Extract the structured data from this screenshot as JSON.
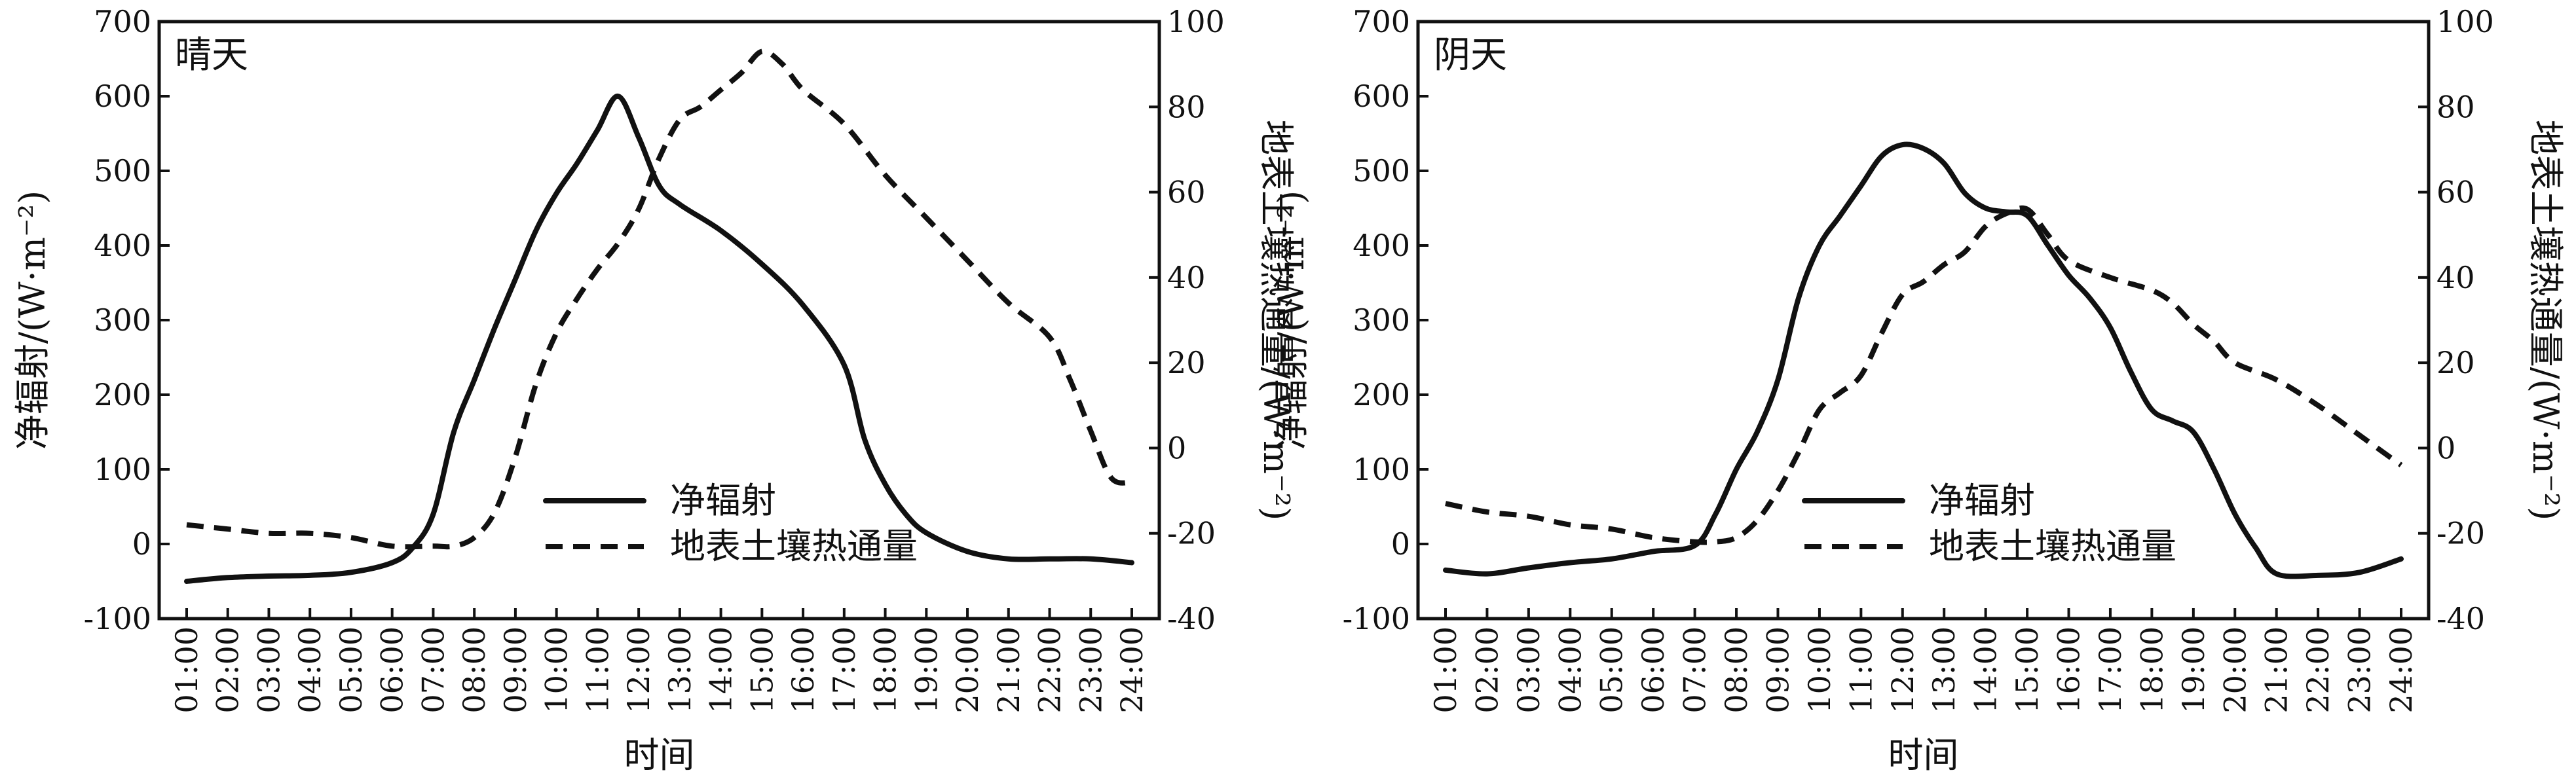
{
  "chart_data": [
    {
      "type": "line",
      "title": "晴天",
      "xlabel": "时间",
      "ylabel_left": "净辐射/(W·m⁻²)",
      "ylabel_right": "地表土壤热通量/(W·m⁻²)",
      "categories": [
        "01:00",
        "02:00",
        "03:00",
        "04:00",
        "05:00",
        "06:00",
        "07:00",
        "08:00",
        "09:00",
        "10:00",
        "11:00",
        "12:00",
        "13:00",
        "14:00",
        "15:00",
        "16:00",
        "17:00",
        "18:00",
        "19:00",
        "20:00",
        "21:00",
        "22:00",
        "23:00",
        "24:00"
      ],
      "ylim_left": [
        -100,
        700
      ],
      "yticks_left": [
        -100,
        0,
        100,
        200,
        300,
        400,
        500,
        600,
        700
      ],
      "ylim_right": [
        -40,
        100
      ],
      "yticks_right": [
        -40,
        -20,
        0,
        20,
        40,
        60,
        80,
        100
      ],
      "legend_position": "lower-center",
      "series": [
        {
          "name": "净辐射",
          "axis": "left",
          "style": "solid",
          "x": [
            1,
            2,
            3,
            4,
            5,
            6,
            6.5,
            7,
            7.5,
            8,
            8.5,
            9,
            9.5,
            10,
            10.5,
            11,
            11.5,
            12,
            12.5,
            13,
            14,
            15,
            16,
            17,
            17.5,
            18,
            18.5,
            19,
            20,
            21,
            22,
            23,
            24
          ],
          "values": [
            -50,
            -45,
            -43,
            -42,
            -38,
            -25,
            -5,
            40,
            150,
            220,
            290,
            355,
            420,
            470,
            510,
            555,
            600,
            545,
            480,
            455,
            420,
            375,
            320,
            240,
            140,
            80,
            40,
            15,
            -10,
            -20,
            -20,
            -20,
            -25
          ]
        },
        {
          "name": "地表土壤热通量",
          "axis": "right",
          "style": "dashed",
          "x": [
            1,
            2,
            3,
            4,
            5,
            6,
            7,
            7.5,
            8,
            8.5,
            9,
            9.5,
            10,
            10.5,
            11,
            11.5,
            12,
            12.5,
            13,
            13.5,
            14,
            14.5,
            15,
            15.5,
            16,
            17,
            18,
            19,
            20,
            21,
            22,
            22.5,
            23,
            23.5,
            24
          ],
          "values": [
            -18,
            -19,
            -20,
            -20,
            -21,
            -23,
            -23,
            -23,
            -21,
            -15,
            -2,
            15,
            27,
            35,
            42,
            48,
            56,
            68,
            77,
            80,
            84,
            88,
            93,
            90,
            84,
            76,
            64,
            54,
            44,
            34,
            26,
            16,
            4,
            -7,
            -8
          ]
        }
      ]
    },
    {
      "type": "line",
      "title": "阴天",
      "xlabel": "时间",
      "ylabel_left": "净辐射/(W·m⁻²)",
      "ylabel_right": "地表土壤热通量/(W·m⁻²)",
      "categories": [
        "01:00",
        "02:00",
        "03:00",
        "04:00",
        "05:00",
        "06:00",
        "07:00",
        "08:00",
        "09:00",
        "10:00",
        "11:00",
        "12:00",
        "13:00",
        "14:00",
        "15:00",
        "16:00",
        "17:00",
        "18:00",
        "19:00",
        "20:00",
        "21:00",
        "22:00",
        "23:00",
        "24:00"
      ],
      "ylim_left": [
        -100,
        700
      ],
      "yticks_left": [
        -100,
        0,
        100,
        200,
        300,
        400,
        500,
        600,
        700
      ],
      "ylim_right": [
        -40,
        100
      ],
      "yticks_right": [
        -40,
        -20,
        0,
        20,
        40,
        60,
        80,
        100
      ],
      "legend_position": "lower-center",
      "series": [
        {
          "name": "净辐射",
          "axis": "left",
          "style": "solid",
          "x": [
            1,
            2,
            3,
            4,
            5,
            6,
            7,
            7.5,
            8,
            8.5,
            9,
            9.5,
            10,
            10.5,
            11,
            11.5,
            12,
            12.5,
            13,
            13.5,
            14,
            14.5,
            15,
            15.5,
            16,
            16.5,
            17,
            17.5,
            18,
            18.5,
            19,
            19.5,
            20,
            20.5,
            21,
            22,
            23,
            24
          ],
          "values": [
            -35,
            -40,
            -32,
            -25,
            -20,
            -10,
            -2,
            40,
            100,
            150,
            220,
            330,
            400,
            440,
            480,
            520,
            535,
            530,
            510,
            470,
            450,
            445,
            440,
            400,
            360,
            330,
            290,
            230,
            180,
            165,
            150,
            100,
            40,
            -5,
            -40,
            -42,
            -38,
            -20
          ]
        },
        {
          "name": "地表土壤热通量",
          "axis": "right",
          "style": "dashed",
          "x": [
            1,
            2,
            3,
            4,
            5,
            6,
            7,
            7.5,
            8,
            8.5,
            9,
            9.5,
            10,
            10.5,
            11,
            11.5,
            12,
            12.5,
            13,
            13.5,
            14,
            14.5,
            15,
            15.5,
            16,
            17,
            18,
            18.5,
            19,
            19.5,
            20,
            21,
            22,
            23,
            24
          ],
          "values": [
            -13,
            -15,
            -16,
            -18,
            -19,
            -21,
            -22,
            -22,
            -21,
            -17,
            -10,
            -1,
            9,
            13,
            17,
            27,
            36,
            39,
            43,
            46,
            52,
            55,
            56,
            50,
            44,
            40,
            37,
            34,
            29,
            25,
            20,
            16,
            10,
            3,
            -4
          ]
        }
      ]
    }
  ]
}
